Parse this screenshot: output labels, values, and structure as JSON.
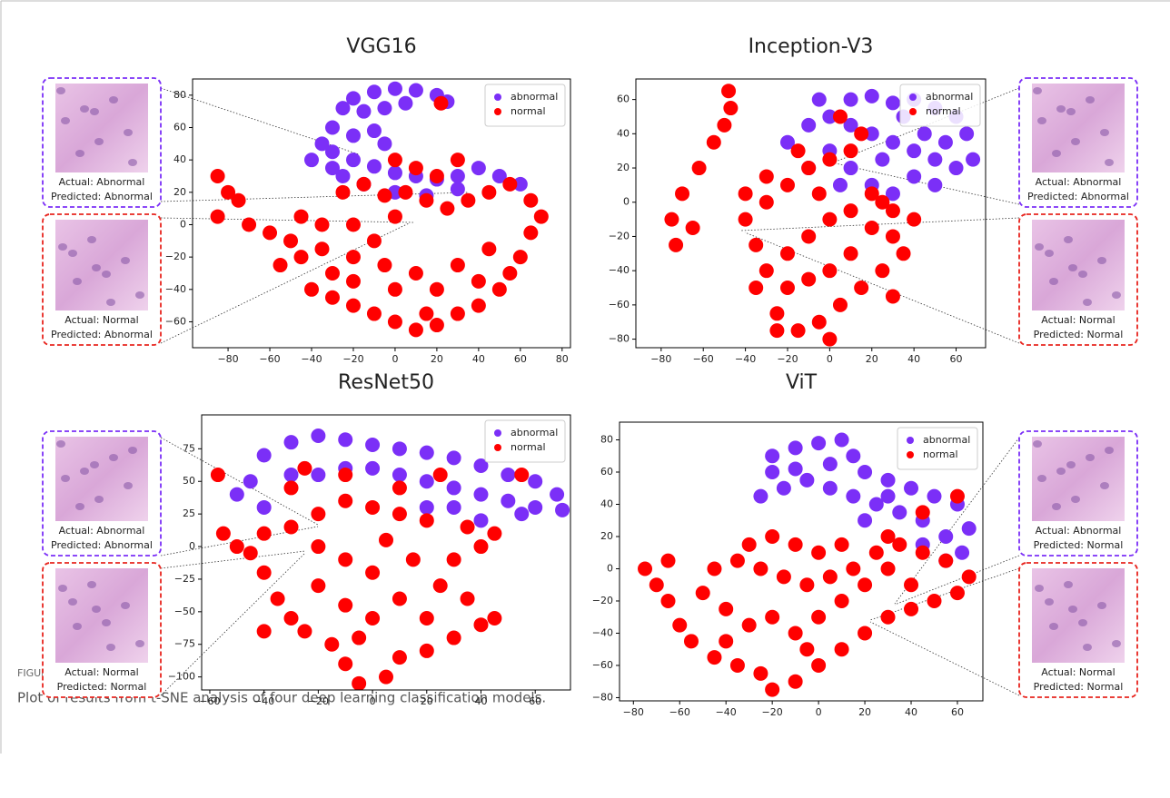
{
  "chart_data": [
    {
      "type": "scatter",
      "title": "VGG16",
      "legend": "upper right",
      "xlim": [
        -97,
        84
      ],
      "ylim": [
        -76,
        90
      ],
      "xticks": [
        {
          "value": -80,
          "label": "−80"
        },
        {
          "value": -60,
          "label": "−60"
        },
        {
          "value": -40,
          "label": "−40"
        },
        {
          "value": -20,
          "label": "−20"
        },
        0,
        20,
        40,
        60,
        80
      ],
      "yticks": [
        {
          "value": -60,
          "label": "−60"
        },
        {
          "value": -40,
          "label": "−40"
        },
        {
          "value": -20,
          "label": "−20"
        },
        0,
        20,
        40,
        60,
        80
      ],
      "series": [
        {
          "name": "abnormal",
          "color": "#7b2ff7",
          "x": [
            -10,
            0,
            10,
            20,
            25,
            -20,
            -25,
            -15,
            -5,
            5,
            -30,
            -35,
            -40,
            -30,
            -20,
            -10,
            0,
            10,
            20,
            30,
            40,
            50,
            60,
            -25,
            -15,
            0,
            15,
            30,
            -30,
            -20,
            -10,
            -5
          ],
          "values": [
            82,
            84,
            83,
            80,
            76,
            78,
            72,
            70,
            72,
            75,
            60,
            50,
            40,
            45,
            40,
            36,
            32,
            30,
            28,
            30,
            35,
            30,
            25,
            30,
            25,
            20,
            18,
            22,
            35,
            55,
            58,
            50
          ]
        },
        {
          "name": "normal",
          "color": "#ff0000",
          "x": [
            -85,
            -80,
            -75,
            -85,
            -70,
            -60,
            -50,
            -45,
            -55,
            -40,
            -30,
            -20,
            -10,
            0,
            10,
            20,
            30,
            40,
            50,
            55,
            60,
            65,
            70,
            65,
            55,
            45,
            35,
            25,
            15,
            5,
            -5,
            -15,
            -25,
            0,
            10,
            20,
            -20,
            -5,
            10,
            30,
            45,
            20,
            0,
            -35,
            -30,
            -20,
            40,
            -45,
            -35,
            -20,
            -10,
            0,
            30,
            22,
            15
          ],
          "values": [
            30,
            20,
            15,
            5,
            0,
            -5,
            -10,
            -20,
            -25,
            -40,
            -45,
            -50,
            -55,
            -60,
            -65,
            -62,
            -55,
            -50,
            -40,
            -30,
            -20,
            -5,
            5,
            15,
            25,
            20,
            15,
            10,
            15,
            20,
            18,
            25,
            20,
            40,
            35,
            30,
            -20,
            -25,
            -30,
            -25,
            -15,
            -40,
            -40,
            -15,
            -30,
            -35,
            -35,
            5,
            0,
            0,
            -10,
            5,
            40,
            75,
            -55
          ]
        }
      ],
      "insets": [
        {
          "actual": "Actual: Abnormal",
          "predicted": "Predicted: Abnormal",
          "color": "#7b2ff7"
        },
        {
          "actual": "Actual: Normal",
          "predicted": "Predicted: Abnormal",
          "color": "#e8251f"
        }
      ]
    },
    {
      "type": "scatter",
      "title": "Inception-V3",
      "legend": "upper right",
      "xlim": [
        -92,
        74
      ],
      "ylim": [
        -85,
        72
      ],
      "xticks": [
        {
          "value": -80,
          "label": "−80"
        },
        {
          "value": -60,
          "label": "−60"
        },
        {
          "value": -40,
          "label": "−40"
        },
        {
          "value": -20,
          "label": "−20"
        },
        0,
        20,
        40,
        60
      ],
      "yticks": [
        {
          "value": -80,
          "label": "−80"
        },
        {
          "value": -60,
          "label": "−60"
        },
        {
          "value": -40,
          "label": "−40"
        },
        {
          "value": -20,
          "label": "−20"
        },
        0,
        20,
        40,
        60
      ],
      "series": [
        {
          "name": "abnormal",
          "color": "#7b2ff7",
          "x": [
            10,
            20,
            30,
            40,
            50,
            60,
            65,
            68,
            60,
            50,
            40,
            30,
            20,
            10,
            0,
            -10,
            -20,
            0,
            10,
            20,
            30,
            45,
            55,
            35,
            25,
            5,
            -10,
            40,
            50,
            -5
          ],
          "values": [
            60,
            62,
            58,
            60,
            55,
            50,
            40,
            25,
            20,
            25,
            30,
            35,
            40,
            45,
            50,
            45,
            35,
            30,
            20,
            10,
            5,
            40,
            35,
            50,
            25,
            10,
            20,
            15,
            10,
            60
          ]
        },
        {
          "name": "normal",
          "color": "#ff0000",
          "x": [
            -48,
            -47,
            -50,
            -55,
            -62,
            -70,
            -75,
            -73,
            -65,
            -40,
            -35,
            -30,
            -20,
            -10,
            0,
            10,
            20,
            30,
            35,
            25,
            15,
            5,
            -5,
            -15,
            -25,
            -20,
            -10,
            0,
            10,
            -30,
            -20,
            -10,
            0,
            10,
            -30,
            -40,
            20,
            30,
            15,
            5,
            -15,
            -5,
            40,
            30,
            -35,
            -25,
            25,
            0
          ],
          "values": [
            65,
            55,
            45,
            35,
            20,
            5,
            -10,
            -25,
            -15,
            -10,
            -25,
            -40,
            -30,
            -20,
            -10,
            -5,
            -15,
            -20,
            -30,
            -40,
            -50,
            -60,
            -70,
            -75,
            -65,
            -50,
            -45,
            -40,
            -30,
            0,
            10,
            20,
            25,
            30,
            15,
            5,
            5,
            -5,
            40,
            50,
            30,
            5,
            -10,
            -55,
            -50,
            -75,
            0,
            -80
          ]
        }
      ],
      "insets": [
        {
          "actual": "Actual: Abnormal",
          "predicted": "Predicted: Abnormal",
          "color": "#7b2ff7"
        },
        {
          "actual": "Actual: Normal",
          "predicted": "Predicted: Normal",
          "color": "#e8251f"
        }
      ]
    },
    {
      "type": "scatter",
      "title": "ResNet50",
      "legend": "upper right",
      "xlim": [
        -63,
        73
      ],
      "ylim": [
        -110,
        101
      ],
      "xticks": [
        {
          "value": -60,
          "label": "−60"
        },
        {
          "value": -40,
          "label": "−40"
        },
        {
          "value": -20,
          "label": "−20"
        },
        0,
        20,
        40,
        60
      ],
      "yticks": [
        {
          "value": -100,
          "label": "−100"
        },
        {
          "value": -75,
          "label": "−75"
        },
        {
          "value": -50,
          "label": "−50"
        },
        {
          "value": -25,
          "label": "−25"
        },
        0,
        25,
        50,
        75
      ],
      "series": [
        {
          "name": "abnormal",
          "color": "#7b2ff7",
          "x": [
            -40,
            -30,
            -20,
            -10,
            0,
            10,
            20,
            30,
            40,
            50,
            60,
            68,
            70,
            60,
            50,
            40,
            30,
            20,
            10,
            0,
            -10,
            -20,
            -30,
            -45,
            -50,
            40,
            55,
            30,
            -40,
            20
          ],
          "values": [
            70,
            80,
            85,
            82,
            78,
            75,
            72,
            68,
            62,
            55,
            50,
            40,
            28,
            30,
            35,
            40,
            45,
            50,
            55,
            60,
            60,
            55,
            55,
            50,
            40,
            20,
            25,
            30,
            30,
            30
          ]
        },
        {
          "name": "normal",
          "color": "#ff0000",
          "x": [
            -57,
            -55,
            -50,
            -45,
            -40,
            -35,
            -30,
            -25,
            -40,
            -15,
            -10,
            -5,
            5,
            10,
            20,
            30,
            40,
            45,
            35,
            25,
            30,
            40,
            45,
            35,
            20,
            10,
            0,
            -10,
            -20,
            -30,
            -40,
            -20,
            -10,
            0,
            10,
            0,
            -10,
            -20,
            15,
            5,
            -25,
            -10,
            10,
            55,
            25,
            -30,
            -5,
            20
          ],
          "values": [
            55,
            10,
            0,
            -5,
            -20,
            -40,
            -55,
            -65,
            -65,
            -75,
            -90,
            -105,
            -100,
            -85,
            -80,
            -70,
            -60,
            -55,
            -40,
            -30,
            -10,
            0,
            10,
            15,
            20,
            25,
            30,
            35,
            25,
            15,
            10,
            0,
            -10,
            -20,
            -40,
            -55,
            -45,
            -30,
            -10,
            5,
            60,
            55,
            45,
            55,
            55,
            45,
            -70,
            -55
          ]
        }
      ],
      "insets": [
        {
          "actual": "Actual: Abnormal",
          "predicted": "Predicted: Abnormal",
          "color": "#7b2ff7"
        },
        {
          "actual": "Actual: Normal",
          "predicted": "Predicted: Normal",
          "color": "#e8251f"
        }
      ]
    },
    {
      "type": "scatter",
      "title": "ViT",
      "legend": "upper right",
      "xlim": [
        -86,
        71
      ],
      "ylim": [
        -82,
        91
      ],
      "xticks": [
        {
          "value": -80,
          "label": "−80"
        },
        {
          "value": -60,
          "label": "−60"
        },
        {
          "value": -40,
          "label": "−40"
        },
        {
          "value": -20,
          "label": "−20"
        },
        0,
        20,
        40,
        60
      ],
      "yticks": [
        {
          "value": -80,
          "label": "−80"
        },
        {
          "value": -60,
          "label": "−60"
        },
        {
          "value": -40,
          "label": "−40"
        },
        {
          "value": -20,
          "label": "−20"
        },
        0,
        20,
        40,
        60,
        80
      ],
      "series": [
        {
          "name": "abnormal",
          "color": "#7b2ff7",
          "x": [
            -20,
            -10,
            0,
            10,
            15,
            20,
            30,
            40,
            50,
            60,
            65,
            62,
            55,
            45,
            35,
            25,
            15,
            5,
            -5,
            -15,
            -25,
            -20,
            -10,
            5,
            30,
            45,
            55,
            20
          ],
          "values": [
            70,
            75,
            78,
            80,
            70,
            60,
            55,
            50,
            45,
            40,
            25,
            10,
            20,
            30,
            35,
            40,
            45,
            50,
            55,
            50,
            45,
            60,
            62,
            65,
            45,
            15,
            5,
            30
          ]
        },
        {
          "name": "normal",
          "color": "#ff0000",
          "x": [
            -75,
            -70,
            -65,
            -60,
            -55,
            -45,
            -35,
            -25,
            -20,
            -10,
            0,
            10,
            20,
            30,
            40,
            50,
            60,
            65,
            55,
            45,
            35,
            25,
            15,
            5,
            -5,
            -15,
            -25,
            -35,
            -45,
            -50,
            -40,
            -30,
            -20,
            -10,
            0,
            10,
            20,
            30,
            40,
            -30,
            -20,
            -10,
            0,
            10,
            45,
            60,
            30,
            -5,
            -40,
            -65
          ],
          "values": [
            0,
            -10,
            -20,
            -35,
            -45,
            -55,
            -60,
            -65,
            -75,
            -70,
            -60,
            -50,
            -40,
            -30,
            -25,
            -20,
            -15,
            -5,
            5,
            10,
            15,
            10,
            0,
            -5,
            -10,
            -5,
            0,
            5,
            0,
            -15,
            -25,
            -35,
            -30,
            -40,
            -30,
            -20,
            -10,
            0,
            -10,
            15,
            20,
            15,
            10,
            15,
            35,
            45,
            20,
            -50,
            -45,
            5
          ]
        }
      ],
      "insets": [
        {
          "actual": "Actual: Abnormal",
          "predicted": "Predicted: Normal",
          "color": "#7b2ff7"
        },
        {
          "actual": "Actual: Normal",
          "predicted": "Predicted: Normal",
          "color": "#e8251f"
        }
      ]
    }
  ],
  "caption": {
    "label": "FIGURE 3",
    "text": "Plot of results from t-SNE analysis of four deep learning classification models."
  }
}
